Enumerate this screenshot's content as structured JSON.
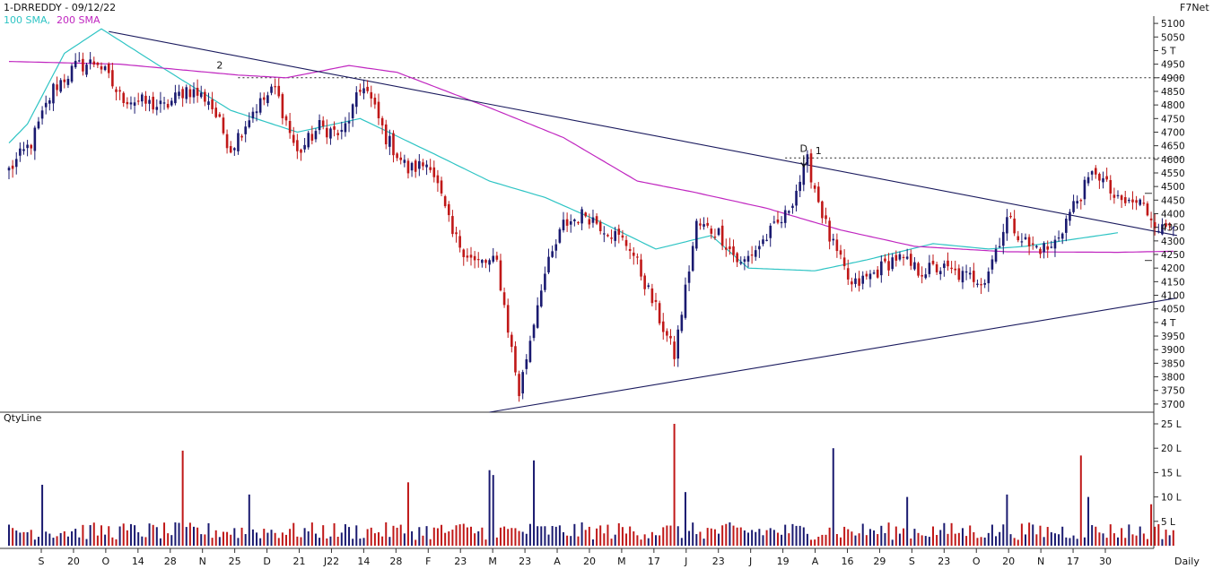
{
  "header": {
    "symbol_date": "1-DRREDDY - 09/12/22",
    "source": "F7Net",
    "legend_sma100": "100 SMA,",
    "legend_sma200": "200 SMA",
    "colors": {
      "sma100": "#2ec4c4",
      "sma200": "#c026c0"
    }
  },
  "volume_panel": {
    "title": "QtyLine"
  },
  "footer": {
    "period": "Daily"
  },
  "chart_data": [
    {
      "type": "candlestick",
      "title": "1-DRREDDY - 09/12/22",
      "ylim": [
        3670,
        5130
      ],
      "y_ticks": [
        {
          "v": 5100,
          "label": "5100"
        },
        {
          "v": 5050,
          "label": "5050"
        },
        {
          "v": 5000,
          "label": "5 T"
        },
        {
          "v": 4950,
          "label": "4950"
        },
        {
          "v": 4900,
          "label": "4900"
        },
        {
          "v": 4850,
          "label": "4850"
        },
        {
          "v": 4800,
          "label": "4800"
        },
        {
          "v": 4750,
          "label": "4750"
        },
        {
          "v": 4700,
          "label": "4700"
        },
        {
          "v": 4650,
          "label": "4650"
        },
        {
          "v": 4600,
          "label": "4600"
        },
        {
          "v": 4550,
          "label": "4550"
        },
        {
          "v": 4500,
          "label": "4500"
        },
        {
          "v": 4450,
          "label": "4450"
        },
        {
          "v": 4400,
          "label": "4400"
        },
        {
          "v": 4350,
          "label": "4350"
        },
        {
          "v": 4300,
          "label": "4300"
        },
        {
          "v": 4250,
          "label": "4250"
        },
        {
          "v": 4200,
          "label": "4200"
        },
        {
          "v": 4150,
          "label": "4150"
        },
        {
          "v": 4100,
          "label": "4100"
        },
        {
          "v": 4050,
          "label": "4050"
        },
        {
          "v": 4000,
          "label": "4 T"
        },
        {
          "v": 3950,
          "label": "3950"
        },
        {
          "v": 3900,
          "label": "3900"
        },
        {
          "v": 3850,
          "label": "3850"
        },
        {
          "v": 3800,
          "label": "3800"
        },
        {
          "v": 3750,
          "label": "3750"
        },
        {
          "v": 3700,
          "label": "3700"
        }
      ],
      "x_labels": [
        "S",
        "20",
        "O",
        "14",
        "28",
        "N",
        "25",
        "D",
        "21",
        "J22",
        "14",
        "28",
        "F",
        "23",
        "M",
        "23",
        "A",
        "20",
        "M",
        "17",
        "J",
        "23",
        "J",
        "19",
        "A",
        "16",
        "29",
        "S",
        "23",
        "O",
        "20",
        "N",
        "17",
        "30"
      ],
      "bars": 316,
      "anchors": [
        [
          0,
          4560
        ],
        [
          6,
          4660
        ],
        [
          12,
          4860
        ],
        [
          18,
          4940
        ],
        [
          24,
          4960
        ],
        [
          30,
          4830
        ],
        [
          36,
          4810
        ],
        [
          42,
          4790
        ],
        [
          48,
          4860
        ],
        [
          54,
          4820
        ],
        [
          60,
          4640
        ],
        [
          66,
          4780
        ],
        [
          72,
          4860
        ],
        [
          78,
          4620
        ],
        [
          84,
          4720
        ],
        [
          90,
          4690
        ],
        [
          96,
          4880
        ],
        [
          102,
          4680
        ],
        [
          108,
          4560
        ],
        [
          114,
          4590
        ],
        [
          120,
          4320
        ],
        [
          126,
          4220
        ],
        [
          132,
          4220
        ],
        [
          138,
          3740
        ],
        [
          144,
          4140
        ],
        [
          150,
          4360
        ],
        [
          156,
          4400
        ],
        [
          162,
          4340
        ],
        [
          168,
          4280
        ],
        [
          174,
          4080
        ],
        [
          180,
          3880
        ],
        [
          186,
          4360
        ],
        [
          192,
          4330
        ],
        [
          198,
          4210
        ],
        [
          204,
          4300
        ],
        [
          210,
          4390
        ],
        [
          216,
          4590
        ],
        [
          222,
          4310
        ],
        [
          228,
          4130
        ],
        [
          234,
          4180
        ],
        [
          240,
          4240
        ],
        [
          246,
          4190
        ],
        [
          252,
          4200
        ],
        [
          258,
          4170
        ],
        [
          264,
          4160
        ],
        [
          270,
          4380
        ],
        [
          276,
          4280
        ],
        [
          282,
          4270
        ],
        [
          288,
          4430
        ],
        [
          294,
          4560
        ],
        [
          300,
          4440
        ],
        [
          306,
          4440
        ],
        [
          312,
          4340
        ],
        [
          315,
          4380
        ]
      ],
      "sma100": [
        [
          0,
          4660
        ],
        [
          5,
          4730
        ],
        [
          15,
          4990
        ],
        [
          25,
          5080
        ],
        [
          40,
          4950
        ],
        [
          60,
          4780
        ],
        [
          78,
          4700
        ],
        [
          95,
          4750
        ],
        [
          115,
          4620
        ],
        [
          130,
          4520
        ],
        [
          145,
          4460
        ],
        [
          160,
          4370
        ],
        [
          175,
          4270
        ],
        [
          190,
          4320
        ],
        [
          200,
          4200
        ],
        [
          218,
          4190
        ],
        [
          232,
          4230
        ],
        [
          250,
          4290
        ],
        [
          265,
          4270
        ],
        [
          275,
          4280
        ],
        [
          290,
          4310
        ],
        [
          300,
          4330
        ]
      ],
      "sma200": [
        [
          0,
          4960
        ],
        [
          30,
          4950
        ],
        [
          62,
          4910
        ],
        [
          75,
          4900
        ],
        [
          92,
          4945
        ],
        [
          105,
          4920
        ],
        [
          130,
          4790
        ],
        [
          150,
          4680
        ],
        [
          170,
          4520
        ],
        [
          185,
          4480
        ],
        [
          205,
          4420
        ],
        [
          225,
          4340
        ],
        [
          245,
          4280
        ],
        [
          270,
          4260
        ],
        [
          300,
          4258
        ],
        [
          315,
          4262
        ]
      ],
      "trendlines": [
        {
          "from": [
            27,
            5070
          ],
          "to": [
            316,
            4320
          ]
        },
        {
          "from": [
            130,
            3670
          ],
          "to": [
            316,
            4090
          ]
        }
      ],
      "hlines": [
        {
          "y": 4900,
          "from": 62,
          "to": 316,
          "style": "dotted"
        },
        {
          "y": 4605,
          "from": 210,
          "to": 316,
          "style": "dotted"
        }
      ],
      "annotations": [
        {
          "text": "2",
          "bar": 57,
          "y": 4920
        },
        {
          "text": "D",
          "bar": 215,
          "y": 4615
        },
        {
          "text": "1",
          "bar": 219,
          "y": 4606
        }
      ]
    },
    {
      "type": "bar",
      "title": "QtyLine",
      "ylim": [
        0,
        25
      ],
      "y_ticks": [
        {
          "v": 25,
          "label": "25 L"
        },
        {
          "v": 20,
          "label": "20 L"
        },
        {
          "v": 15,
          "label": "15 L"
        },
        {
          "v": 10,
          "label": "10 L"
        },
        {
          "v": 5,
          "label": "5 L"
        }
      ],
      "spikes": [
        [
          9,
          12.5
        ],
        [
          47,
          19.5
        ],
        [
          65,
          10.5
        ],
        [
          108,
          13
        ],
        [
          123,
          4.5
        ],
        [
          130,
          15.5
        ],
        [
          131,
          14.5
        ],
        [
          142,
          17.5
        ],
        [
          180,
          25
        ],
        [
          183,
          11
        ],
        [
          223,
          20
        ],
        [
          243,
          10
        ],
        [
          270,
          10.5
        ],
        [
          290,
          18.5
        ],
        [
          292,
          10
        ],
        [
          309,
          8.5
        ]
      ]
    }
  ]
}
